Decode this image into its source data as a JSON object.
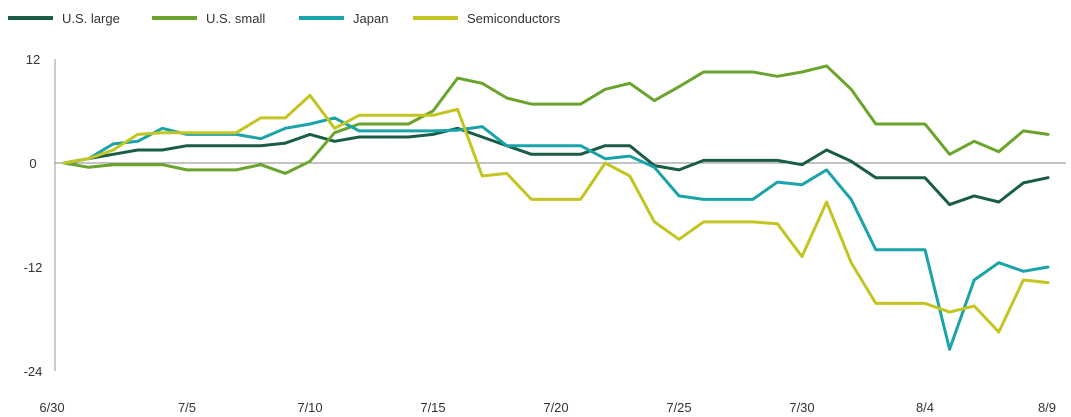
{
  "chart_data": {
    "type": "line",
    "title": "",
    "xlabel": "",
    "ylabel": "",
    "ylim": [
      -24,
      12
    ],
    "yticks": [
      12,
      0,
      -12,
      -24
    ],
    "y_tick_labels": [
      "12",
      "0",
      "-12",
      "-24"
    ],
    "x_tick_labels": [
      "6/30",
      "7/5",
      "7/10",
      "7/15",
      "7/20",
      "7/25",
      "7/30",
      "8/4",
      "8/9"
    ],
    "x": [
      "6/30",
      "7/1",
      "7/2",
      "7/3",
      "7/4",
      "7/5",
      "7/6",
      "7/7",
      "7/8",
      "7/9",
      "7/10",
      "7/11",
      "7/12",
      "7/13",
      "7/14",
      "7/15",
      "7/16",
      "7/17",
      "7/18",
      "7/19",
      "7/20",
      "7/21",
      "7/22",
      "7/23",
      "7/24",
      "7/25",
      "7/26",
      "7/27",
      "7/28",
      "7/29",
      "7/30",
      "7/31",
      "8/1",
      "8/2",
      "8/3",
      "8/4",
      "8/5",
      "8/6",
      "8/7",
      "8/8",
      "8/9"
    ],
    "legend_position": "top-left",
    "grid": false,
    "zero_line": true,
    "series": [
      {
        "name": "U.S. large",
        "color": "#1a5c45",
        "values": [
          0,
          0.5,
          1.0,
          1.5,
          1.5,
          2.0,
          2.0,
          2.0,
          2.0,
          2.3,
          3.3,
          2.5,
          3.0,
          3.0,
          3.0,
          3.3,
          4.0,
          3.0,
          2.0,
          1.0,
          1.0,
          1.0,
          2.0,
          2.0,
          -0.3,
          -0.8,
          0.3,
          0.3,
          0.3,
          0.3,
          -0.2,
          1.5,
          0.2,
          -1.7,
          -1.7,
          -1.7,
          -4.8,
          -3.8,
          -4.5,
          -2.3,
          -1.7
        ]
      },
      {
        "name": "U.S. small",
        "color": "#6aa42c",
        "values": [
          0,
          -0.5,
          -0.2,
          -0.2,
          -0.2,
          -0.8,
          -0.8,
          -0.8,
          -0.2,
          -1.2,
          0.2,
          3.5,
          4.5,
          4.5,
          4.5,
          6.0,
          9.8,
          9.2,
          7.5,
          6.8,
          6.8,
          6.8,
          8.5,
          9.2,
          7.2,
          8.8,
          10.5,
          10.5,
          10.5,
          10.0,
          10.5,
          11.2,
          8.5,
          4.5,
          4.5,
          4.5,
          1.0,
          2.5,
          1.3,
          3.7,
          3.3
        ]
      },
      {
        "name": "Japan",
        "color": "#1aa3a8",
        "values": [
          0,
          0.5,
          2.2,
          2.5,
          4.0,
          3.3,
          3.3,
          3.3,
          2.8,
          4.0,
          4.5,
          5.2,
          3.7,
          3.7,
          3.7,
          3.7,
          3.8,
          4.2,
          2.0,
          2.0,
          2.0,
          2.0,
          0.5,
          0.8,
          -0.5,
          -3.8,
          -4.2,
          -4.2,
          -4.2,
          -2.2,
          -2.5,
          -0.8,
          -4.2,
          -10.0,
          -10.0,
          -10.0,
          -21.5,
          -13.5,
          -11.5,
          -12.5,
          -12.0
        ]
      },
      {
        "name": "Semiconductors",
        "color": "#c3c522",
        "values": [
          0,
          0.5,
          1.5,
          3.3,
          3.5,
          3.5,
          3.5,
          3.5,
          5.2,
          5.2,
          7.8,
          4.0,
          5.5,
          5.5,
          5.5,
          5.5,
          6.2,
          -1.5,
          -1.2,
          -4.2,
          -4.2,
          -4.2,
          0.0,
          -1.5,
          -6.8,
          -8.8,
          -6.8,
          -6.8,
          -6.8,
          -7.0,
          -10.8,
          -4.5,
          -11.5,
          -16.2,
          -16.2,
          -16.2,
          -17.2,
          -16.5,
          -19.5,
          -13.5,
          -13.8
        ]
      }
    ]
  }
}
